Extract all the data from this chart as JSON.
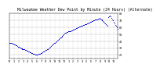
{
  "title": "Milwaukee Weather Dew Point by Minute (24 Hours) (Alternate)",
  "title_fontsize": 3.5,
  "dot_color": "#0000cc",
  "dot_size": 0.5,
  "background_color": "#ffffff",
  "grid_color": "#bbbbbb",
  "ylim": [
    15,
    80
  ],
  "xlim": [
    0,
    143
  ],
  "dew_points": [
    38,
    38,
    37,
    37,
    36,
    36,
    35,
    35,
    34,
    34,
    33,
    32,
    32,
    31,
    31,
    30,
    30,
    29,
    29,
    28,
    28,
    27,
    27,
    26,
    26,
    25,
    25,
    24,
    24,
    23,
    23,
    22,
    22,
    22,
    21,
    21,
    21,
    21,
    22,
    22,
    22,
    23,
    23,
    24,
    24,
    25,
    25,
    26,
    27,
    27,
    28,
    29,
    30,
    31,
    32,
    33,
    34,
    35,
    36,
    37,
    38,
    39,
    40,
    41,
    42,
    43,
    44,
    45,
    46,
    47,
    48,
    49,
    50,
    51,
    52,
    52,
    53,
    53,
    54,
    54,
    55,
    55,
    56,
    56,
    57,
    57,
    58,
    58,
    59,
    59,
    60,
    60,
    61,
    61,
    62,
    62,
    63,
    63,
    64,
    64,
    65,
    65,
    65,
    66,
    66,
    67,
    67,
    68,
    68,
    69,
    69,
    70,
    70,
    71,
    71,
    72,
    72,
    73,
    73,
    74,
    73,
    72,
    71,
    70,
    69,
    68,
    67,
    66,
    65,
    64,
    63,
    75,
    76,
    77,
    76,
    74,
    72,
    70,
    68,
    66,
    64,
    62,
    60,
    58
  ],
  "yticks": [
    20,
    30,
    40,
    50,
    60,
    70,
    80
  ],
  "xtick_interval": 6,
  "tick_fontsize": 2.5,
  "xlabel_pairs": [
    [
      "12",
      ""
    ],
    [
      "1",
      ""
    ],
    [
      "2",
      ""
    ],
    [
      "3",
      ""
    ],
    [
      "4",
      ""
    ],
    [
      "5",
      ""
    ],
    [
      "6",
      ""
    ],
    [
      "7",
      ""
    ],
    [
      "8",
      ""
    ],
    [
      "9",
      ""
    ],
    [
      "10",
      ""
    ],
    [
      "11",
      ""
    ],
    [
      "12",
      ""
    ],
    [
      "1",
      ""
    ],
    [
      "2",
      ""
    ],
    [
      "3",
      ""
    ],
    [
      "4",
      ""
    ],
    [
      "5",
      ""
    ],
    [
      "6",
      ""
    ],
    [
      "7",
      ""
    ],
    [
      "8",
      ""
    ],
    [
      "9",
      ""
    ],
    [
      "10",
      ""
    ],
    [
      "11",
      ""
    ]
  ]
}
